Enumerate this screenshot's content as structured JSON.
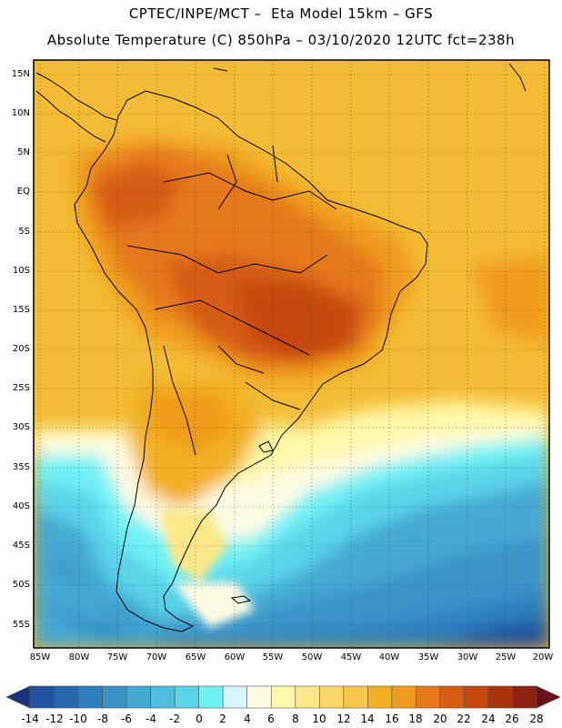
{
  "header": {
    "line1": "CPTEC/INPE/MCT –  Eta Model 15km – GFS",
    "line2": "Absolute Temperature (C) 850hPa – 03/10/2020 12UTC fct=238h"
  },
  "map": {
    "region": "South America",
    "field": "Absolute Temperature 850hPa",
    "lat_labels": [
      "15N",
      "10N",
      "5N",
      "EQ",
      "5S",
      "10S",
      "15S",
      "20S",
      "25S",
      "30S",
      "35S",
      "40S",
      "45S",
      "50S",
      "55S"
    ],
    "lon_labels": [
      "85W",
      "80W",
      "75W",
      "70W",
      "65W",
      "60W",
      "55W",
      "50W",
      "45W",
      "40W",
      "35W",
      "30W",
      "25W",
      "20W"
    ]
  },
  "colorbar": {
    "ticks": [
      "-14",
      "-12",
      "-10",
      "-8",
      "-6",
      "-4",
      "-2",
      "0",
      "2",
      "4",
      "6",
      "8",
      "10",
      "12",
      "14",
      "16",
      "18",
      "20",
      "22",
      "24",
      "26",
      "28"
    ],
    "colors": [
      "#1c3f8f",
      "#21539f",
      "#2768ad",
      "#2f7ebd",
      "#3a93c7",
      "#45a8d2",
      "#4fbedd",
      "#5ad3e8",
      "#6ff1f4",
      "#d8f6fa",
      "#fffbe3",
      "#fff8a8",
      "#fde88b",
      "#fcd86a",
      "#f6c64a",
      "#f2b125",
      "#ef9b1e",
      "#e4781a",
      "#d65c12",
      "#c44710",
      "#a8330d",
      "#8a2410",
      "#6b1612"
    ],
    "left_arrow_color": "#17357f",
    "right_arrow_color": "#6b0f1a"
  }
}
